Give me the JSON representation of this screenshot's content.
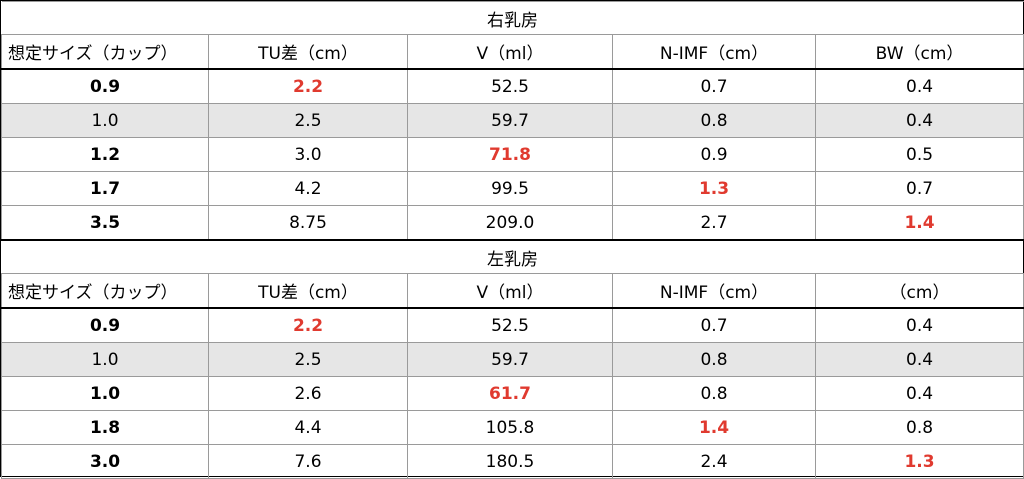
{
  "tables": [
    {
      "section_title": "右乳房",
      "headers": [
        "想定サイズ（カップ）",
        "TU差（cm）",
        "V（ml）",
        "N-IMF（cm）",
        "BW（cm）"
      ],
      "rows": [
        {
          "cells": [
            "0.9",
            "2.2",
            "52.5",
            "0.7",
            "0.4"
          ],
          "highlight": 1,
          "shaded": false
        },
        {
          "cells": [
            "1.0",
            "2.5",
            "59.7",
            "0.8",
            "0.4"
          ],
          "highlight": -1,
          "shaded": true
        },
        {
          "cells": [
            "1.2",
            "3.0",
            "71.8",
            "0.9",
            "0.5"
          ],
          "highlight": 2,
          "shaded": false
        },
        {
          "cells": [
            "1.7",
            "4.2",
            "99.5",
            "1.3",
            "0.7"
          ],
          "highlight": 3,
          "shaded": false
        },
        {
          "cells": [
            "3.5",
            "8.75",
            "209.0",
            "2.7",
            "1.4"
          ],
          "highlight": 4,
          "shaded": false
        }
      ]
    },
    {
      "section_title": "左乳房",
      "headers": [
        "想定サイズ（カップ）",
        "TU差（cm）",
        "V（ml）",
        "N-IMF（cm）",
        "（cm）"
      ],
      "rows": [
        {
          "cells": [
            "0.9",
            "2.2",
            "52.5",
            "0.7",
            "0.4"
          ],
          "highlight": 1,
          "shaded": false
        },
        {
          "cells": [
            "1.0",
            "2.5",
            "59.7",
            "0.8",
            "0.4"
          ],
          "highlight": -1,
          "shaded": true
        },
        {
          "cells": [
            "1.0",
            "2.6",
            "61.7",
            "0.8",
            "0.4"
          ],
          "highlight": 2,
          "shaded": false
        },
        {
          "cells": [
            "1.8",
            "4.4",
            "105.8",
            "1.4",
            "0.8"
          ],
          "highlight": 3,
          "shaded": false
        },
        {
          "cells": [
            "3.0",
            "7.6",
            "180.5",
            "2.4",
            "1.3"
          ],
          "highlight": 4,
          "shaded": false
        }
      ]
    }
  ],
  "colors": {
    "highlight": "#e03a2f",
    "shaded_row": "#e6e6e6"
  }
}
